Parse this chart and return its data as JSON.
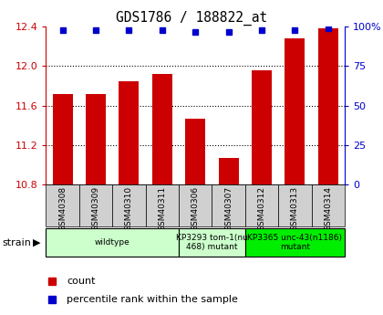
{
  "title": "GDS1786 / 188822_at",
  "samples": [
    "GSM40308",
    "GSM40309",
    "GSM40310",
    "GSM40311",
    "GSM40306",
    "GSM40307",
    "GSM40312",
    "GSM40313",
    "GSM40314"
  ],
  "counts": [
    11.72,
    11.72,
    11.85,
    11.92,
    11.47,
    11.07,
    11.96,
    12.28,
    12.38
  ],
  "percentiles": [
    98,
    98,
    98,
    98,
    97,
    97,
    98,
    98,
    99
  ],
  "ylim": [
    10.8,
    12.4
  ],
  "yticks": [
    10.8,
    11.2,
    11.6,
    12.0,
    12.4
  ],
  "right_yticks": [
    0,
    25,
    50,
    75,
    100
  ],
  "right_ylim": [
    0,
    100
  ],
  "bar_color": "#cc0000",
  "dot_color": "#0000cc",
  "legend_count_label": "count",
  "legend_pct_label": "percentile rank within the sample",
  "strain_label": "strain",
  "tick_color_left": "#cc0000",
  "tick_color_right": "#0000cc",
  "grid_yticks": [
    11.2,
    11.6,
    12.0
  ],
  "group_defs": [
    {
      "start": 0,
      "end": 3,
      "label": "wildtype",
      "color": "#ccffcc"
    },
    {
      "start": 4,
      "end": 5,
      "label": "KP3293 tom-1(nu\n468) mutant",
      "color": "#ccffcc"
    },
    {
      "start": 6,
      "end": 8,
      "label": "KP3365 unc-43(n1186)\nmutant",
      "color": "#00ee00"
    }
  ]
}
